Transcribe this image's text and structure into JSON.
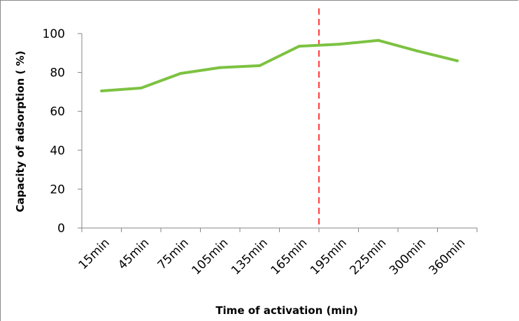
{
  "chart_data": {
    "type": "line",
    "title": "",
    "xlabel": "Time of activation  (min)",
    "ylabel": "Capacity of adsorption  ( %)",
    "categories": [
      "15min",
      "45min",
      "75min",
      "105min",
      "135min",
      "165min",
      "195min",
      "225min",
      "300min",
      "360min"
    ],
    "series": [
      {
        "values": [
          70.5,
          72,
          79.5,
          82.5,
          83.5,
          93.5,
          94.5,
          96.5,
          91,
          86
        ]
      }
    ],
    "ylim": [
      0,
      100
    ],
    "yticks": [
      0,
      20,
      40,
      60,
      80,
      100
    ],
    "grid": false,
    "legend": "none",
    "reference_line": {
      "x_between": [
        "165min",
        "195min"
      ],
      "style": "dashed"
    },
    "colors": {
      "series": "#7dc242",
      "reference_line": "#ff3b3b",
      "axis": "#868686",
      "frame": "#888888"
    }
  }
}
